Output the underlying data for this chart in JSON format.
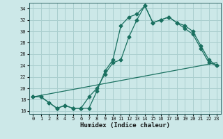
{
  "xlabel": "Humidex (Indice chaleur)",
  "background_color": "#cce8e8",
  "grid_color": "#aacfcf",
  "line_color": "#1a7060",
  "xlim": [
    -0.5,
    23.5
  ],
  "ylim": [
    15.5,
    35.0
  ],
  "yticks": [
    16,
    18,
    20,
    22,
    24,
    26,
    28,
    30,
    32,
    34
  ],
  "xticks": [
    0,
    1,
    2,
    3,
    4,
    5,
    6,
    7,
    8,
    9,
    10,
    11,
    12,
    13,
    14,
    15,
    16,
    17,
    18,
    19,
    20,
    21,
    22,
    23
  ],
  "line1_x": [
    0,
    1,
    2,
    3,
    4,
    5,
    6,
    7,
    8,
    9,
    10,
    11,
    12,
    13,
    14,
    15,
    16,
    17,
    18,
    19,
    20,
    21,
    22,
    23
  ],
  "line1_y": [
    18.5,
    18.5,
    17.5,
    16.5,
    17.0,
    16.5,
    16.5,
    16.5,
    19.5,
    23.0,
    25.0,
    31.0,
    32.5,
    33.0,
    34.5,
    31.5,
    32.0,
    32.5,
    31.5,
    30.5,
    29.5,
    27.0,
    24.5,
    24.0
  ],
  "line2_x": [
    0,
    1,
    2,
    3,
    4,
    5,
    6,
    7,
    8,
    9,
    10,
    11,
    12,
    13,
    14,
    15,
    16,
    17,
    18,
    19,
    20,
    21,
    22,
    23
  ],
  "line2_y": [
    18.5,
    18.5,
    17.5,
    16.5,
    17.0,
    16.5,
    16.5,
    18.5,
    20.0,
    22.5,
    24.5,
    25.0,
    29.0,
    32.0,
    34.5,
    31.5,
    32.0,
    32.5,
    31.5,
    31.0,
    30.0,
    27.5,
    25.0,
    24.0
  ],
  "line3_x": [
    0,
    23
  ],
  "line3_y": [
    18.5,
    24.5
  ],
  "marker_size": 2.5,
  "line_width": 0.9,
  "tick_fontsize": 5.0,
  "xlabel_fontsize": 6.5
}
